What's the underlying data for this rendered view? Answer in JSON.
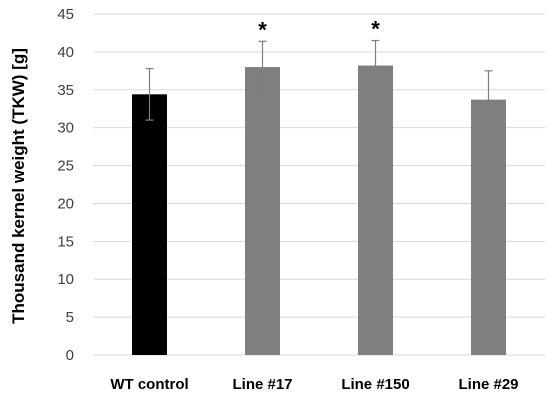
{
  "chart_data": {
    "type": "bar",
    "title": "",
    "xlabel": "",
    "ylabel": "Thousand kernel weight (TKW) [g]",
    "ylim": [
      0,
      45
    ],
    "yticks": [
      0,
      5,
      10,
      15,
      20,
      25,
      30,
      35,
      40,
      45
    ],
    "grid": true,
    "legend": "none",
    "categories": [
      "WT control",
      "Line #17",
      "Line #150",
      "Line #29"
    ],
    "values": [
      34.4,
      38.0,
      38.2,
      33.7
    ],
    "errors": [
      3.4,
      3.4,
      3.3,
      3.8
    ],
    "significance": [
      "",
      "*",
      "*",
      ""
    ],
    "colors": [
      "#000000",
      "#7f7f7f",
      "#7f7f7f",
      "#7f7f7f"
    ],
    "error_bar_color": "#7f7f7f",
    "grid_color": "#d9d9d9"
  }
}
